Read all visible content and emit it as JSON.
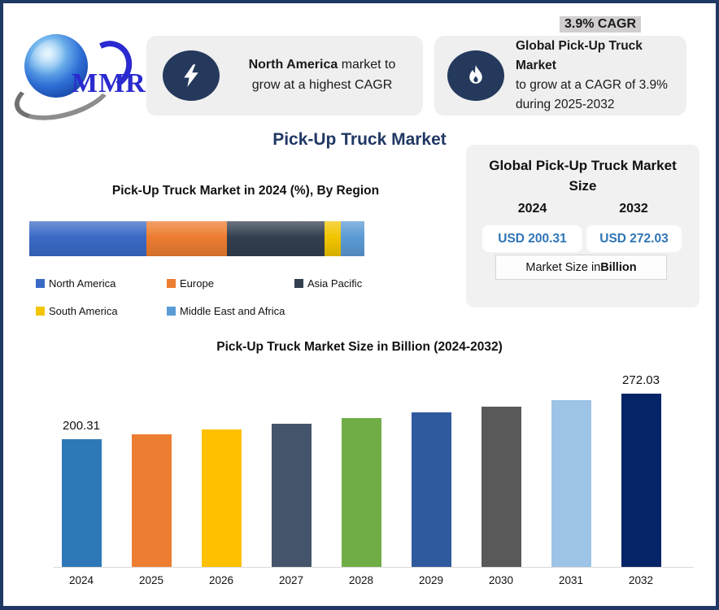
{
  "brand": {
    "logo_text": "MMR"
  },
  "header": {
    "cagr_badge": "3.9% CAGR",
    "card_north_america": {
      "bold": "North America",
      "line1_rest": " market to",
      "line2": "grow at a highest CAGR"
    },
    "card_global": {
      "bold": "Global Pick-Up Truck Market",
      "line2": "to grow at a CAGR of 3.9%",
      "line3": "during 2025-2032"
    }
  },
  "main_title": "Pick-Up Truck Market",
  "size_panel": {
    "title_line1": "Global Pick-Up Truck Market",
    "title_line2": "Size",
    "year_left": "2024",
    "year_right": "2032",
    "value_left": "USD 200.31",
    "value_right": "USD 272.03",
    "note_regular": "Market Size in ",
    "note_bold": "Billion"
  },
  "colors": {
    "frame_border": "#1f3864",
    "title_navy": "#203864",
    "icon_navy": "#24395c",
    "card_bg": "#efefef",
    "badge_bg": "#d0cece",
    "usd_blue": "#2e75b6"
  },
  "chart_data": [
    {
      "type": "bar",
      "subtype": "stacked-horizontal-single",
      "title": "Pick-Up Truck Market in 2024 (%), By Region",
      "unit": "% share (estimated from segment widths)",
      "series": [
        {
          "name": "North America",
          "value": 35,
          "color": "#3a6ac6"
        },
        {
          "name": "Europe",
          "value": 24,
          "color": "#ed7d31"
        },
        {
          "name": "Asia Pacific",
          "value": 29,
          "color": "#333f4f"
        },
        {
          "name": "South America",
          "value": 5,
          "color": "#f2c500"
        },
        {
          "name": "Middle East and Africa",
          "value": 7,
          "color": "#5b9bd5"
        }
      ],
      "legend_position": "bottom"
    },
    {
      "type": "bar",
      "title": "Pick-Up Truck Market Size in Billion (2024-2032)",
      "categories": [
        "2024",
        "2025",
        "2026",
        "2027",
        "2028",
        "2029",
        "2030",
        "2031",
        "2032"
      ],
      "values": [
        200.31,
        208.12,
        216.24,
        224.67,
        233.43,
        242.54,
        252.0,
        261.82,
        272.03
      ],
      "value_labels": [
        "200.31",
        "",
        "",
        "",
        "",
        "",
        "",
        "",
        "272.03"
      ],
      "bar_colors": [
        "#2e78b8",
        "#ed7d31",
        "#ffc000",
        "#44546a",
        "#70ad47",
        "#305a9e",
        "#595959",
        "#9dc3e6",
        "#052467"
      ],
      "ylabel": "USD Billion",
      "ylim": [
        0,
        280
      ],
      "grid": false,
      "note": "unlabeled bar values estimated from 3.9% CAGR between labeled endpoints"
    }
  ]
}
